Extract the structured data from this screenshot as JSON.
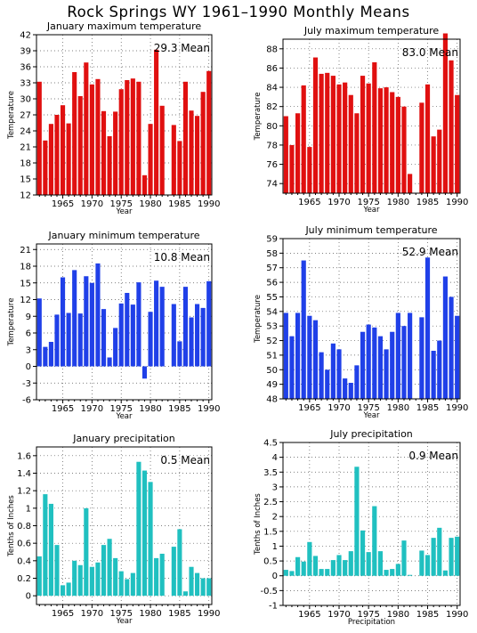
{
  "title": "Rock Springs WY  1961–1990 Monthly Means",
  "chart_data": [
    {
      "type": "bar",
      "title": "January maximum temperature",
      "ylabel": "Temperature",
      "xlabel": "Year",
      "mean_label": "29.3 Mean",
      "color": "#e01010",
      "ylim": [
        12,
        42
      ],
      "yticks": [
        12,
        15,
        18,
        21,
        24,
        27,
        30,
        33,
        36,
        39,
        42
      ],
      "xticks": [
        1965,
        1970,
        1975,
        1980,
        1985,
        1990
      ],
      "x": [
        1961,
        1962,
        1963,
        1964,
        1965,
        1966,
        1967,
        1968,
        1969,
        1970,
        1971,
        1972,
        1973,
        1974,
        1975,
        1976,
        1977,
        1978,
        1979,
        1980,
        1981,
        1982,
        1983,
        1984,
        1985,
        1986,
        1987,
        1988,
        1989,
        1990
      ],
      "values": [
        33.2,
        22.2,
        25.3,
        27.0,
        28.8,
        25.4,
        35.0,
        30.5,
        36.8,
        32.7,
        33.7,
        27.7,
        23.0,
        27.6,
        31.8,
        33.5,
        33.8,
        33.2,
        15.7,
        25.3,
        39.2,
        28.7,
        null,
        25.1,
        22.1,
        33.2,
        27.8,
        26.8,
        31.3,
        35.2
      ]
    },
    {
      "type": "bar",
      "title": "July maximum temperature",
      "ylabel": "Temperature",
      "xlabel": "Year",
      "mean_label": "83.0 Mean",
      "color": "#e01010",
      "ylim": [
        73,
        89
      ],
      "yticks": [
        74,
        76,
        78,
        80,
        82,
        84,
        86,
        88
      ],
      "xticks": [
        1965,
        1970,
        1975,
        1980,
        1985,
        1990
      ],
      "x": [
        1961,
        1962,
        1963,
        1964,
        1965,
        1966,
        1967,
        1968,
        1969,
        1970,
        1971,
        1972,
        1973,
        1974,
        1975,
        1976,
        1977,
        1978,
        1979,
        1980,
        1981,
        1982,
        1983,
        1984,
        1985,
        1986,
        1987,
        1988,
        1989,
        1990
      ],
      "values": [
        81.0,
        78.0,
        81.3,
        84.2,
        77.8,
        87.1,
        85.4,
        85.5,
        85.2,
        84.3,
        84.5,
        83.2,
        81.3,
        85.2,
        84.4,
        86.6,
        83.9,
        84.0,
        83.5,
        83.0,
        82.0,
        75.0,
        null,
        82.4,
        84.3,
        78.9,
        79.6,
        89.6,
        86.8,
        83.2
      ]
    },
    {
      "type": "bar",
      "title": "January minimum temperature",
      "ylabel": "Temperature",
      "xlabel": "Year",
      "mean_label": "10.8 Mean",
      "color": "#2040e8",
      "ylim": [
        -6,
        22
      ],
      "yticks": [
        -6,
        -3,
        0,
        3,
        6,
        9,
        12,
        15,
        18,
        21
      ],
      "xticks": [
        1965,
        1970,
        1975,
        1980,
        1985,
        1990
      ],
      "x": [
        1961,
        1962,
        1963,
        1964,
        1965,
        1966,
        1967,
        1968,
        1969,
        1970,
        1971,
        1972,
        1973,
        1974,
        1975,
        1976,
        1977,
        1978,
        1979,
        1980,
        1981,
        1982,
        1983,
        1984,
        1985,
        1986,
        1987,
        1988,
        1989,
        1990
      ],
      "values": [
        12.2,
        3.5,
        4.4,
        9.3,
        16.0,
        9.6,
        17.3,
        9.5,
        16.2,
        15.0,
        18.5,
        10.3,
        1.6,
        6.9,
        11.3,
        13.2,
        11.1,
        15.1,
        -2.2,
        9.8,
        15.4,
        14.3,
        null,
        11.2,
        4.5,
        14.3,
        8.8,
        11.2,
        10.5,
        15.3
      ]
    },
    {
      "type": "bar",
      "title": "July minimum temperature",
      "ylabel": "Temperature",
      "xlabel": "Year",
      "mean_label": "52.9 Mean",
      "color": "#2040e8",
      "ylim": [
        48,
        59
      ],
      "yticks": [
        48,
        49,
        50,
        51,
        52,
        53,
        54,
        55,
        56,
        57,
        58,
        59
      ],
      "xticks": [
        1965,
        1970,
        1975,
        1980,
        1985,
        1990
      ],
      "x": [
        1961,
        1962,
        1963,
        1964,
        1965,
        1966,
        1967,
        1968,
        1969,
        1970,
        1971,
        1972,
        1973,
        1974,
        1975,
        1976,
        1977,
        1978,
        1979,
        1980,
        1981,
        1982,
        1983,
        1984,
        1985,
        1986,
        1987,
        1988,
        1989,
        1990
      ],
      "values": [
        53.9,
        52.3,
        53.9,
        57.5,
        53.7,
        53.4,
        51.2,
        50.0,
        51.8,
        51.4,
        49.4,
        49.1,
        50.3,
        52.6,
        53.1,
        52.9,
        52.3,
        51.4,
        52.6,
        53.9,
        53.0,
        53.9,
        null,
        53.6,
        57.7,
        51.3,
        52.0,
        56.4,
        55.0,
        53.7
      ]
    },
    {
      "type": "bar",
      "title": "January precipitation",
      "ylabel": "Tenths of Inches",
      "xlabel": "Year",
      "mean_label": "0.5  Mean",
      "color": "#20c0c0",
      "ylim": [
        -0.1,
        1.7
      ],
      "yticks": [
        0,
        0.2,
        0.4,
        0.6,
        0.8,
        1,
        1.2,
        1.4,
        1.6
      ],
      "xticks": [
        1965,
        1970,
        1975,
        1980,
        1985,
        1990
      ],
      "x": [
        1961,
        1962,
        1963,
        1964,
        1965,
        1966,
        1967,
        1968,
        1969,
        1970,
        1971,
        1972,
        1973,
        1974,
        1975,
        1976,
        1977,
        1978,
        1979,
        1980,
        1981,
        1982,
        1983,
        1984,
        1985,
        1986,
        1987,
        1988,
        1989,
        1990
      ],
      "values": [
        0.45,
        1.16,
        1.05,
        0.58,
        0.12,
        0.15,
        0.4,
        0.35,
        1.0,
        0.33,
        0.38,
        0.58,
        0.65,
        0.43,
        0.28,
        0.19,
        0.26,
        1.53,
        1.43,
        1.3,
        0.43,
        0.48,
        null,
        0.56,
        0.76,
        0.05,
        0.33,
        0.26,
        0.2,
        0.2
      ]
    },
    {
      "type": "bar",
      "title": "July precipitation",
      "ylabel": "Tenths of Inches",
      "xlabel": "Precipitation",
      "mean_label": "0.9  Mean",
      "color": "#20c0c0",
      "ylim": [
        -1,
        4.5
      ],
      "yticks": [
        -1,
        -0.5,
        0,
        0.5,
        1,
        1.5,
        2,
        2.5,
        3,
        3.5,
        4,
        4.5
      ],
      "xticks": [
        1965,
        1970,
        1975,
        1980,
        1985,
        1990
      ],
      "x": [
        1961,
        1962,
        1963,
        1964,
        1965,
        1966,
        1967,
        1968,
        1969,
        1970,
        1971,
        1972,
        1973,
        1974,
        1975,
        1976,
        1977,
        1978,
        1979,
        1980,
        1981,
        1982,
        1983,
        1984,
        1985,
        1986,
        1987,
        1988,
        1989,
        1990
      ],
      "values": [
        0.2,
        0.16,
        0.63,
        0.48,
        1.14,
        0.67,
        0.23,
        0.23,
        0.53,
        0.7,
        0.53,
        0.83,
        3.68,
        1.53,
        0.8,
        2.35,
        0.83,
        0.2,
        0.23,
        0.4,
        1.19,
        0.03,
        null,
        0.85,
        0.7,
        1.28,
        1.62,
        0.18,
        1.28,
        1.32
      ]
    }
  ]
}
